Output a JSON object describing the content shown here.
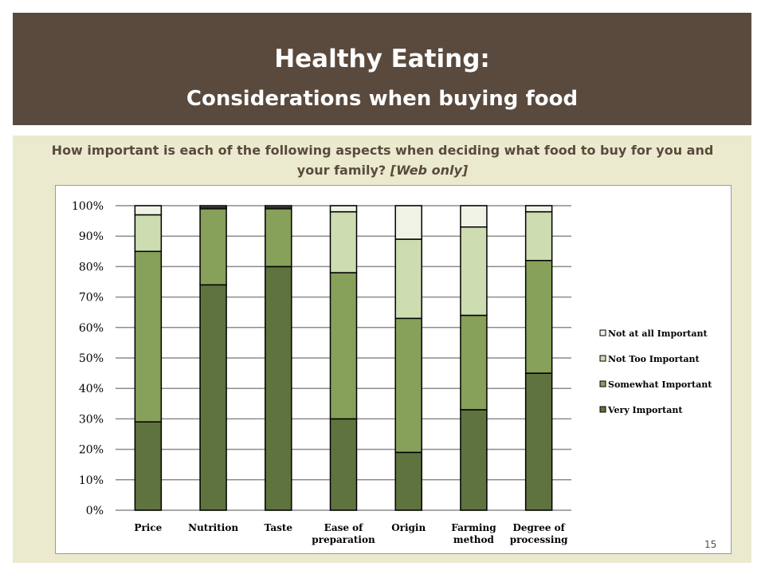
{
  "header": {
    "title": "Healthy Eating:",
    "subtitle": "Considerations when buying food"
  },
  "question": {
    "text": "How important is each of the following aspects when deciding what food to buy for you and your family?",
    "note": "[Web only]"
  },
  "page_number": "15",
  "colors": {
    "header_bg": "#5a4a3e",
    "panel_bg": "#ebeace",
    "very_important": "#5f733f",
    "somewhat_important": "#87a05a",
    "not_too_important": "#cddcb1",
    "not_at_all_important": "#f1f2e6"
  },
  "chart_data": {
    "type": "bar",
    "stacked": true,
    "percent": true,
    "categories": [
      "Price",
      "Nutrition",
      "Taste",
      "Ease of preparation",
      "Origin",
      "Farming method",
      "Degree of processing"
    ],
    "category_lines": [
      [
        "Price"
      ],
      [
        "Nutrition"
      ],
      [
        "Taste"
      ],
      [
        "Ease of",
        "preparation"
      ],
      [
        "Origin"
      ],
      [
        "Farming",
        "method"
      ],
      [
        "Degree of",
        "processing"
      ]
    ],
    "series": [
      {
        "name": "Very Important",
        "color": "#5f733f",
        "values": [
          29,
          74,
          80,
          30,
          19,
          33,
          45
        ]
      },
      {
        "name": "Somewhat Important",
        "color": "#87a05a",
        "values": [
          56,
          25,
          19,
          48,
          44,
          31,
          37
        ]
      },
      {
        "name": "Not Too Important",
        "color": "#cddcb1",
        "values": [
          12,
          0.5,
          0.5,
          20,
          26,
          29,
          16
        ]
      },
      {
        "name": "Not at all Important",
        "color": "#f1f2e6",
        "values": [
          3,
          0.5,
          0.5,
          2,
          11,
          7,
          2
        ]
      }
    ],
    "legend_order": [
      "Not at all Important",
      "Not Too Important",
      "Somewhat Important",
      "Very Important"
    ],
    "ylim": [
      0,
      100
    ],
    "yticks": [
      "0%",
      "10%",
      "20%",
      "30%",
      "40%",
      "50%",
      "60%",
      "70%",
      "80%",
      "90%",
      "100%"
    ],
    "grid": true,
    "legend_position": "right"
  }
}
